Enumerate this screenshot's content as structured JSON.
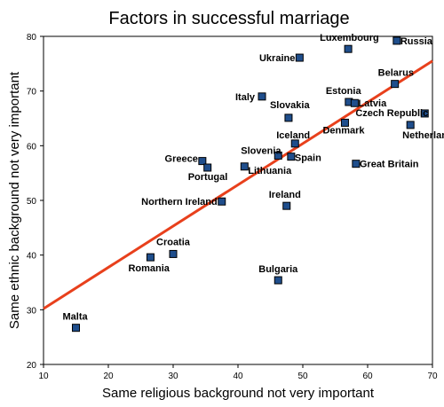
{
  "chart_data": {
    "type": "scatter",
    "title": "Factors in successful marriage",
    "xlabel": "Same religious background not very important",
    "ylabel": "Same ethnic background not very important",
    "xlim": [
      10,
      70
    ],
    "ylim": [
      20,
      80
    ],
    "x_ticks": [
      "10",
      "20",
      "30",
      "40",
      "50",
      "60",
      "70"
    ],
    "y_ticks": [
      "20",
      "30",
      "40",
      "50",
      "60",
      "70",
      "80"
    ],
    "grid": false,
    "legend": "none",
    "marker_color": "#1f4e8c",
    "trendline": {
      "color": "#e8401c",
      "from": [
        10,
        30.2
      ],
      "to": [
        70,
        75.5
      ]
    },
    "points": [
      {
        "label": "Malta",
        "x": 15.0,
        "y": 26.7
      },
      {
        "label": "Romania",
        "x": 26.5,
        "y": 39.6
      },
      {
        "label": "Croatia",
        "x": 30.0,
        "y": 40.2
      },
      {
        "label": "Northern Ireland",
        "x": 37.5,
        "y": 49.8
      },
      {
        "label": "Greece",
        "x": 34.5,
        "y": 57.2
      },
      {
        "label": "Portugal",
        "x": 35.3,
        "y": 56.0
      },
      {
        "label": "Lithuania",
        "x": 41.0,
        "y": 56.2
      },
      {
        "label": "Slovenia",
        "x": 46.2,
        "y": 58.2
      },
      {
        "label": "Spain",
        "x": 48.2,
        "y": 58.0
      },
      {
        "label": "Iceland",
        "x": 48.8,
        "y": 60.4
      },
      {
        "label": "Slovakia",
        "x": 47.8,
        "y": 65.1
      },
      {
        "label": "Italy",
        "x": 43.7,
        "y": 69.0
      },
      {
        "label": "Ukraine",
        "x": 49.5,
        "y": 76.1
      },
      {
        "label": "Ireland",
        "x": 47.5,
        "y": 49.0
      },
      {
        "label": "Bulgaria",
        "x": 46.2,
        "y": 35.4
      },
      {
        "label": "Luxembourg",
        "x": 57.0,
        "y": 77.7
      },
      {
        "label": "Russia",
        "x": 64.5,
        "y": 79.2
      },
      {
        "label": "Belarus",
        "x": 64.2,
        "y": 71.3
      },
      {
        "label": "Estonia",
        "x": 57.1,
        "y": 68.0
      },
      {
        "label": "Latvia",
        "x": 58.0,
        "y": 67.8
      },
      {
        "label": "Czech Republic",
        "x": 68.8,
        "y": 65.9
      },
      {
        "label": "Denmark",
        "x": 56.5,
        "y": 64.2
      },
      {
        "label": "Netherlands",
        "x": 66.6,
        "y": 63.8
      },
      {
        "label": "Great Britain",
        "x": 58.2,
        "y": 56.7
      }
    ]
  }
}
